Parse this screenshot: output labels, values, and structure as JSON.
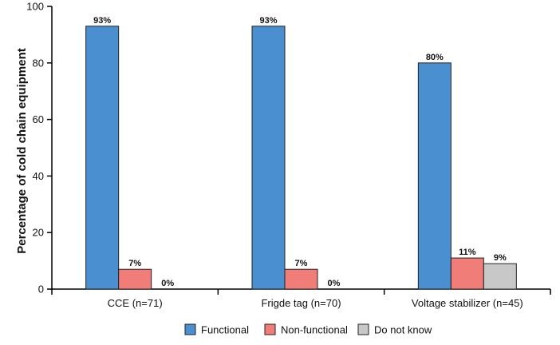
{
  "chart_data": {
    "type": "bar",
    "title": "",
    "xlabel": "",
    "ylabel": "Percentage of cold chain equipment",
    "ylim": [
      0,
      100
    ],
    "yticks": [
      0,
      20,
      40,
      60,
      80,
      100
    ],
    "categories": [
      "CCE (n=71)",
      "Frigde tag (n=70)",
      "Voltage stabilizer (n=45)"
    ],
    "series": [
      {
        "name": "Functional",
        "color": "#4a8fcf",
        "values": [
          93,
          93,
          80
        ],
        "labels": [
          "93%",
          "93%",
          "80%"
        ]
      },
      {
        "name": "Non-functional",
        "color": "#f07d78",
        "values": [
          7,
          7,
          11
        ],
        "labels": [
          "7%",
          "7%",
          "11%"
        ]
      },
      {
        "name": "Do not know",
        "color": "#c8c8c8",
        "values": [
          0,
          0,
          9
        ],
        "labels": [
          "0%",
          "0%",
          "9%"
        ]
      }
    ],
    "legend": "bottom",
    "grid": false
  }
}
